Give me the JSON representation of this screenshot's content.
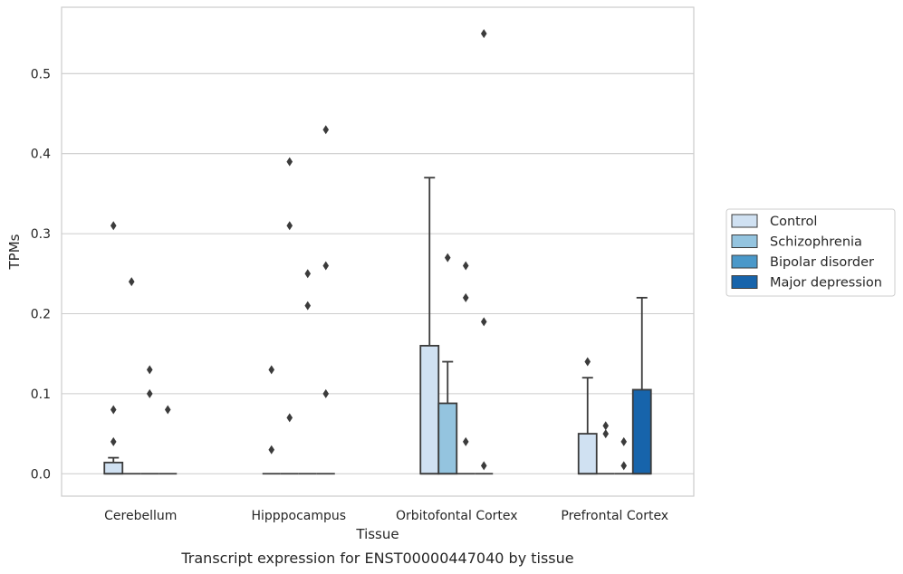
{
  "caption": "Transcript expression for ENST00000447040 by tissue",
  "chart_data": {
    "type": "box",
    "xlabel": "Tissue",
    "ylabel": "TPMs",
    "ylim": [
      -0.028,
      0.583
    ],
    "yticks": [
      "0.0",
      "0.1",
      "0.2",
      "0.3",
      "0.4",
      "0.5"
    ],
    "ytick_values": [
      0.0,
      0.1,
      0.2,
      0.3,
      0.4,
      0.5
    ],
    "grid": "horizontal",
    "legend_position": "right",
    "categories": [
      "Cerebellum",
      "Hipppocampus",
      "Orbitofontal Cortex",
      "Prefrontal Cortex"
    ],
    "series": [
      {
        "name": "Control",
        "color": "#d0e1f2",
        "boxes": [
          {
            "q1": 0.0,
            "median": 0.0,
            "q3": 0.014,
            "whisker_low": 0.0,
            "whisker_high": 0.02,
            "outliers": [
              0.04,
              0.08,
              0.31
            ]
          },
          {
            "q1": 0.0,
            "median": 0.0,
            "q3": 0.0,
            "whisker_low": 0.0,
            "whisker_high": 0.0,
            "outliers": [
              0.03,
              0.13
            ]
          },
          {
            "q1": 0.0,
            "median": 0.0,
            "q3": 0.16,
            "whisker_low": 0.0,
            "whisker_high": 0.37,
            "outliers": []
          },
          {
            "q1": 0.0,
            "median": 0.0,
            "q3": 0.05,
            "whisker_low": 0.0,
            "whisker_high": 0.12,
            "outliers": [
              0.14
            ]
          }
        ]
      },
      {
        "name": "Schizophrenia",
        "color": "#94c4df",
        "boxes": [
          {
            "q1": 0.0,
            "median": 0.0,
            "q3": 0.0,
            "whisker_low": 0.0,
            "whisker_high": 0.0,
            "outliers": [
              0.24
            ]
          },
          {
            "q1": 0.0,
            "median": 0.0,
            "q3": 0.0,
            "whisker_low": 0.0,
            "whisker_high": 0.0,
            "outliers": [
              0.07,
              0.31,
              0.39
            ]
          },
          {
            "q1": 0.0,
            "median": 0.0,
            "q3": 0.088,
            "whisker_low": 0.0,
            "whisker_high": 0.14,
            "outliers": [
              0.27
            ]
          },
          {
            "q1": 0.0,
            "median": 0.0,
            "q3": 0.0,
            "whisker_low": 0.0,
            "whisker_high": 0.0,
            "outliers": [
              0.05,
              0.06
            ]
          }
        ]
      },
      {
        "name": "Bipolar disorder",
        "color": "#4a98c9",
        "boxes": [
          {
            "q1": 0.0,
            "median": 0.0,
            "q3": 0.0,
            "whisker_low": 0.0,
            "whisker_high": 0.0,
            "outliers": [
              0.1,
              0.13
            ]
          },
          {
            "q1": 0.0,
            "median": 0.0,
            "q3": 0.0,
            "whisker_low": 0.0,
            "whisker_high": 0.0,
            "outliers": [
              0.21,
              0.25
            ]
          },
          {
            "q1": 0.0,
            "median": 0.0,
            "q3": 0.0,
            "whisker_low": 0.0,
            "whisker_high": 0.0,
            "outliers": [
              0.04,
              0.22,
              0.26
            ]
          },
          {
            "q1": 0.0,
            "median": 0.0,
            "q3": 0.0,
            "whisker_low": 0.0,
            "whisker_high": 0.0,
            "outliers": [
              0.01,
              0.04
            ]
          }
        ]
      },
      {
        "name": "Major depression",
        "color": "#1764ab",
        "boxes": [
          {
            "q1": 0.0,
            "median": 0.0,
            "q3": 0.0,
            "whisker_low": 0.0,
            "whisker_high": 0.0,
            "outliers": [
              0.08
            ]
          },
          {
            "q1": 0.0,
            "median": 0.0,
            "q3": 0.0,
            "whisker_low": 0.0,
            "whisker_high": 0.0,
            "outliers": [
              0.1,
              0.26,
              0.43
            ]
          },
          {
            "q1": 0.0,
            "median": 0.0,
            "q3": 0.0,
            "whisker_low": 0.0,
            "whisker_high": 0.0,
            "outliers": [
              0.01,
              0.19,
              0.55
            ]
          },
          {
            "q1": 0.0,
            "median": 0.0,
            "q3": 0.105,
            "whisker_low": 0.0,
            "whisker_high": 0.22,
            "outliers": []
          }
        ]
      }
    ]
  }
}
